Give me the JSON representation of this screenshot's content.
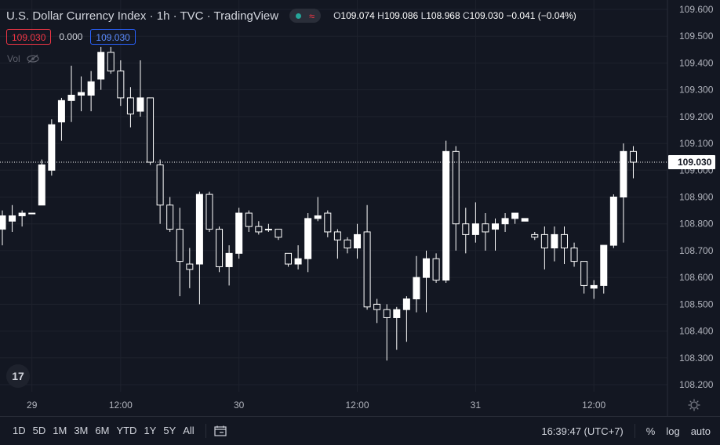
{
  "header": {
    "symbol": "U.S. Dollar Currency Index · 1h · TVC · TradingView",
    "o_label": "O",
    "o_val": "109.074",
    "h_label": "H",
    "h_val": "109.086",
    "l_label": "L",
    "l_val": "108.968",
    "c_label": "C",
    "c_val": "109.030",
    "change": "−0.041 (−0.04%)"
  },
  "price_boxes": {
    "bid": "109.030",
    "spread": "0.000",
    "ask": "109.030"
  },
  "volume_label": "Vol",
  "logo": "17",
  "bottom": {
    "ranges": [
      "1D",
      "5D",
      "1M",
      "3M",
      "6M",
      "YTD",
      "1Y",
      "5Y",
      "All"
    ],
    "time": "16:39:47 (UTC+7)",
    "percent": "%",
    "log": "log",
    "auto": "auto"
  },
  "colors": {
    "background": "#131722",
    "candle": "#ffffff",
    "grid": "#1e222d",
    "text": "#d1d4dc"
  },
  "chart_data": {
    "type": "candlestick",
    "title": "U.S. Dollar Currency Index",
    "interval": "1h",
    "y_ticks": [
      "109.600",
      "109.500",
      "109.400",
      "109.300",
      "109.200",
      "109.100",
      "109.000",
      "108.900",
      "108.800",
      "108.700",
      "108.600",
      "108.500",
      "108.400",
      "108.300",
      "108.200"
    ],
    "ylim": [
      108.18,
      109.62
    ],
    "last_price": "109.030",
    "x_ticks": [
      {
        "label": "29",
        "index": 3
      },
      {
        "label": "12:00",
        "index": 12
      },
      {
        "label": "30",
        "index": 24
      },
      {
        "label": "12:00",
        "index": 36
      },
      {
        "label": "31",
        "index": 48
      },
      {
        "label": "12:00",
        "index": 60
      }
    ],
    "candles": [
      {
        "o": 108.78,
        "h": 108.85,
        "l": 108.72,
        "c": 108.83
      },
      {
        "o": 108.81,
        "h": 108.87,
        "l": 108.77,
        "c": 108.83
      },
      {
        "o": 108.83,
        "h": 108.85,
        "l": 108.79,
        "c": 108.84
      },
      {
        "o": 108.84,
        "h": 108.84,
        "l": 108.84,
        "c": 108.84
      },
      {
        "o": 108.87,
        "h": 109.04,
        "l": 108.87,
        "c": 109.02
      },
      {
        "o": 109.0,
        "h": 109.19,
        "l": 108.98,
        "c": 109.17
      },
      {
        "o": 109.18,
        "h": 109.27,
        "l": 109.11,
        "c": 109.26
      },
      {
        "o": 109.26,
        "h": 109.39,
        "l": 109.18,
        "c": 109.28
      },
      {
        "o": 109.28,
        "h": 109.35,
        "l": 109.22,
        "c": 109.29
      },
      {
        "o": 109.28,
        "h": 109.37,
        "l": 109.22,
        "c": 109.33
      },
      {
        "o": 109.34,
        "h": 109.46,
        "l": 109.3,
        "c": 109.44
      },
      {
        "o": 109.44,
        "h": 109.46,
        "l": 109.36,
        "c": 109.37
      },
      {
        "o": 109.37,
        "h": 109.41,
        "l": 109.24,
        "c": 109.27
      },
      {
        "o": 109.27,
        "h": 109.31,
        "l": 109.16,
        "c": 109.21
      },
      {
        "o": 109.22,
        "h": 109.41,
        "l": 109.2,
        "c": 109.27
      },
      {
        "o": 109.27,
        "h": 109.27,
        "l": 109.02,
        "c": 109.03
      },
      {
        "o": 109.02,
        "h": 109.04,
        "l": 108.8,
        "c": 108.87
      },
      {
        "o": 108.87,
        "h": 108.9,
        "l": 108.77,
        "c": 108.78
      },
      {
        "o": 108.78,
        "h": 108.86,
        "l": 108.53,
        "c": 108.66
      },
      {
        "o": 108.65,
        "h": 108.71,
        "l": 108.56,
        "c": 108.63
      },
      {
        "o": 108.65,
        "h": 108.92,
        "l": 108.5,
        "c": 108.91
      },
      {
        "o": 108.91,
        "h": 108.92,
        "l": 108.77,
        "c": 108.78
      },
      {
        "o": 108.78,
        "h": 108.79,
        "l": 108.62,
        "c": 108.64
      },
      {
        "o": 108.64,
        "h": 108.72,
        "l": 108.57,
        "c": 108.69
      },
      {
        "o": 108.69,
        "h": 108.86,
        "l": 108.67,
        "c": 108.84
      },
      {
        "o": 108.84,
        "h": 108.85,
        "l": 108.77,
        "c": 108.79
      },
      {
        "o": 108.79,
        "h": 108.81,
        "l": 108.76,
        "c": 108.77
      },
      {
        "o": 108.78,
        "h": 108.8,
        "l": 108.77,
        "c": 108.78
      },
      {
        "o": 108.78,
        "h": 108.78,
        "l": 108.74,
        "c": 108.75
      },
      {
        "o": 108.69,
        "h": 108.69,
        "l": 108.64,
        "c": 108.65
      },
      {
        "o": 108.65,
        "h": 108.72,
        "l": 108.63,
        "c": 108.67
      },
      {
        "o": 108.67,
        "h": 108.84,
        "l": 108.62,
        "c": 108.82
      },
      {
        "o": 108.82,
        "h": 108.9,
        "l": 108.81,
        "c": 108.83
      },
      {
        "o": 108.84,
        "h": 108.85,
        "l": 108.75,
        "c": 108.77
      },
      {
        "o": 108.77,
        "h": 108.78,
        "l": 108.67,
        "c": 108.74
      },
      {
        "o": 108.74,
        "h": 108.75,
        "l": 108.69,
        "c": 108.71
      },
      {
        "o": 108.71,
        "h": 108.8,
        "l": 108.67,
        "c": 108.76
      },
      {
        "o": 108.77,
        "h": 108.87,
        "l": 108.48,
        "c": 108.49
      },
      {
        "o": 108.5,
        "h": 108.52,
        "l": 108.43,
        "c": 108.48
      },
      {
        "o": 108.48,
        "h": 108.5,
        "l": 108.29,
        "c": 108.45
      },
      {
        "o": 108.45,
        "h": 108.49,
        "l": 108.33,
        "c": 108.48
      },
      {
        "o": 108.48,
        "h": 108.53,
        "l": 108.36,
        "c": 108.52
      },
      {
        "o": 108.52,
        "h": 108.68,
        "l": 108.47,
        "c": 108.6
      },
      {
        "o": 108.6,
        "h": 108.7,
        "l": 108.47,
        "c": 108.67
      },
      {
        "o": 108.67,
        "h": 108.69,
        "l": 108.58,
        "c": 108.59
      },
      {
        "o": 108.59,
        "h": 109.11,
        "l": 108.58,
        "c": 109.07
      },
      {
        "o": 109.07,
        "h": 109.09,
        "l": 108.7,
        "c": 108.8
      },
      {
        "o": 108.8,
        "h": 108.86,
        "l": 108.69,
        "c": 108.76
      },
      {
        "o": 108.76,
        "h": 108.88,
        "l": 108.73,
        "c": 108.8
      },
      {
        "o": 108.8,
        "h": 108.84,
        "l": 108.7,
        "c": 108.77
      },
      {
        "o": 108.78,
        "h": 108.82,
        "l": 108.7,
        "c": 108.8
      },
      {
        "o": 108.8,
        "h": 108.84,
        "l": 108.77,
        "c": 108.82
      },
      {
        "o": 108.82,
        "h": 108.84,
        "l": 108.8,
        "c": 108.84
      },
      {
        "o": 108.81,
        "h": 108.82,
        "l": 108.81,
        "c": 108.82
      },
      {
        "o": 108.76,
        "h": 108.77,
        "l": 108.74,
        "c": 108.75
      },
      {
        "o": 108.76,
        "h": 108.79,
        "l": 108.63,
        "c": 108.71
      },
      {
        "o": 108.71,
        "h": 108.79,
        "l": 108.66,
        "c": 108.76
      },
      {
        "o": 108.76,
        "h": 108.79,
        "l": 108.65,
        "c": 108.71
      },
      {
        "o": 108.71,
        "h": 108.73,
        "l": 108.64,
        "c": 108.66
      },
      {
        "o": 108.66,
        "h": 108.66,
        "l": 108.54,
        "c": 108.57
      },
      {
        "o": 108.56,
        "h": 108.59,
        "l": 108.52,
        "c": 108.57
      },
      {
        "o": 108.57,
        "h": 108.72,
        "l": 108.54,
        "c": 108.72
      },
      {
        "o": 108.72,
        "h": 108.91,
        "l": 108.71,
        "c": 108.9
      },
      {
        "o": 108.9,
        "h": 109.1,
        "l": 108.73,
        "c": 109.07
      },
      {
        "o": 109.07,
        "h": 109.09,
        "l": 108.97,
        "c": 109.03
      }
    ]
  }
}
